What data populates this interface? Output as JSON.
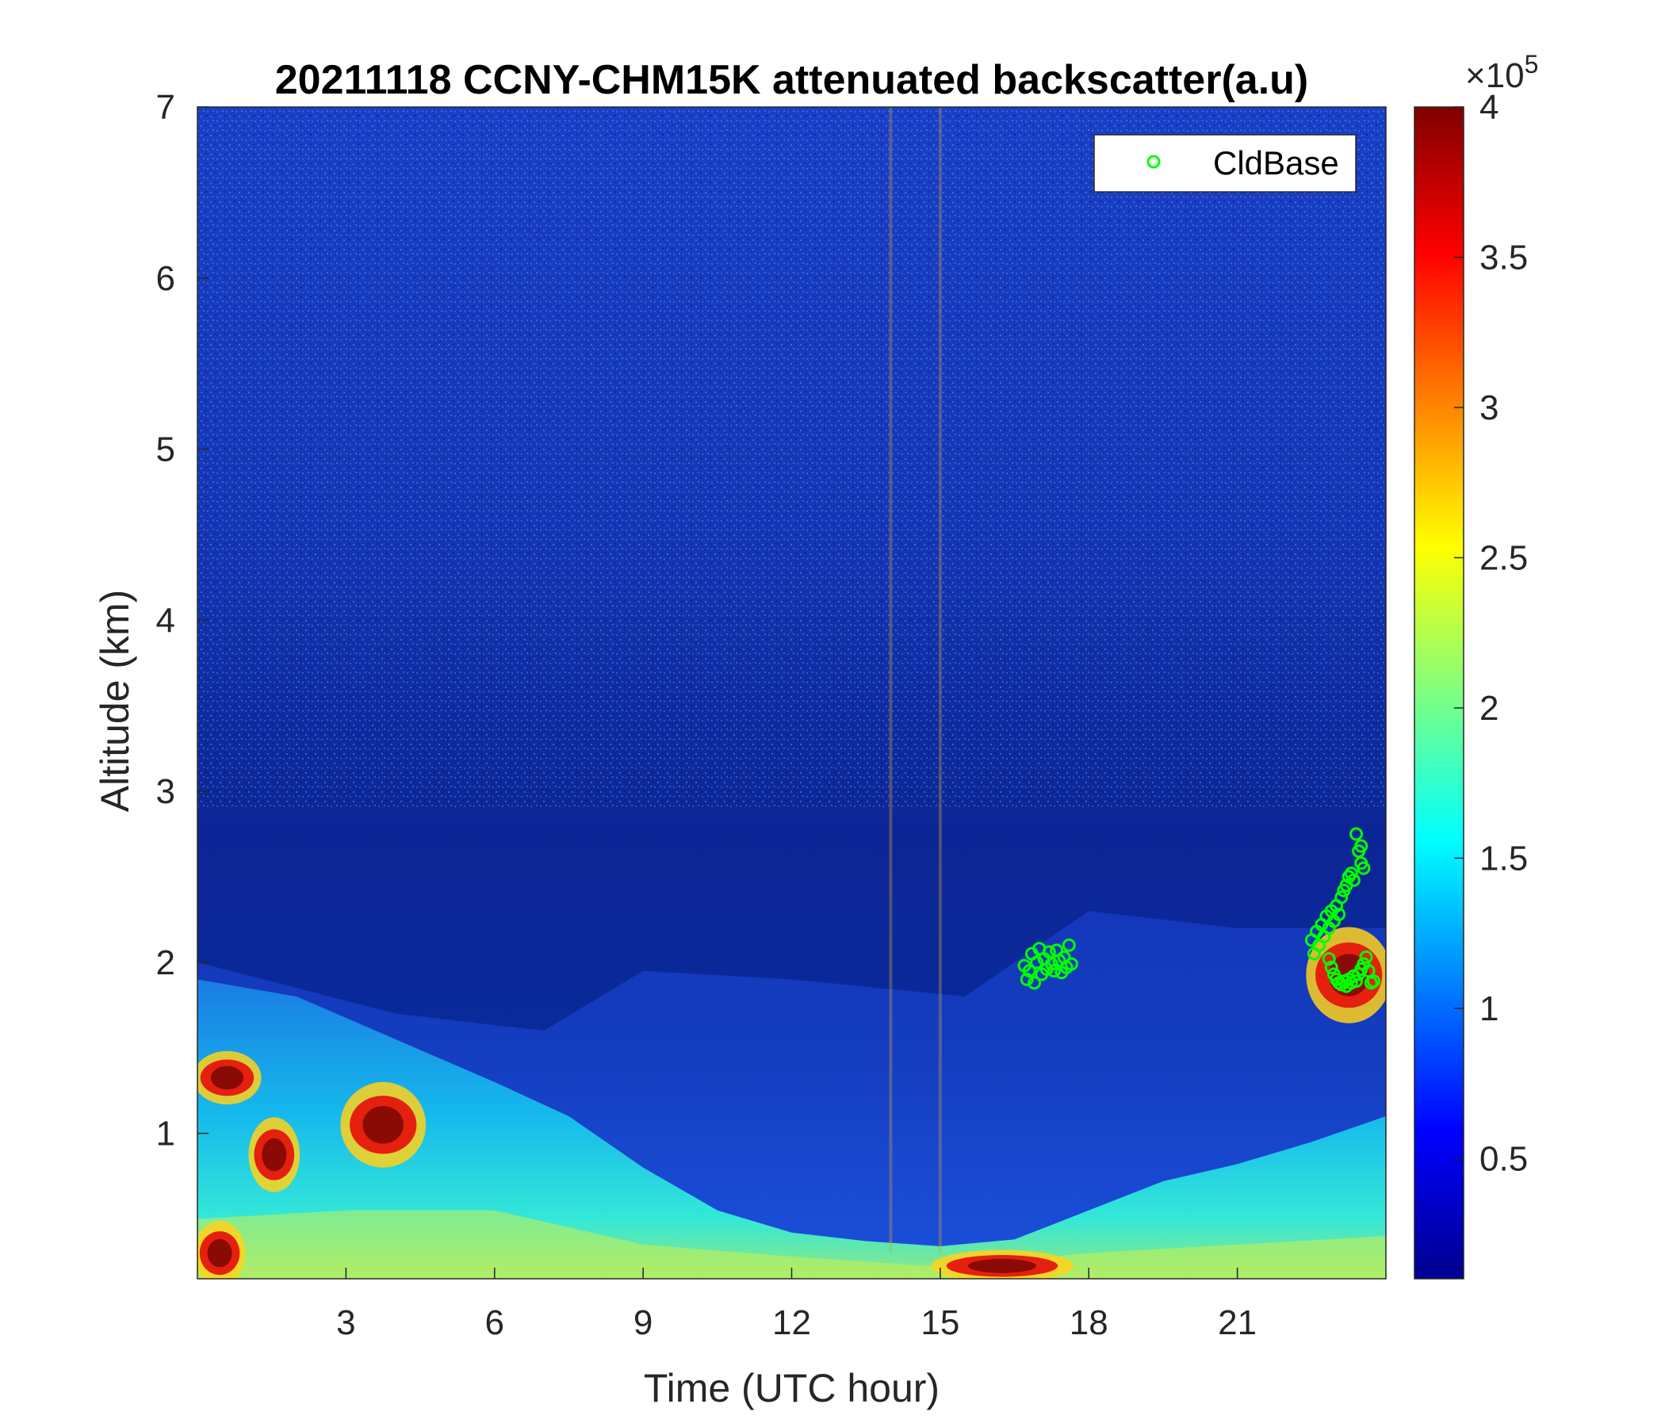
{
  "chart_data": {
    "type": "heatmap",
    "title": "20211118 CCNY-CHM15K attenuated backscatter(a.u)",
    "xlabel": "Time (UTC hour)",
    "ylabel": "Altitude (km)",
    "xlim": [
      0,
      24
    ],
    "ylim": [
      0.15,
      7
    ],
    "xticks": [
      3,
      6,
      9,
      12,
      15,
      18,
      21
    ],
    "yticks": [
      1,
      2,
      3,
      4,
      5,
      6,
      7
    ],
    "colormap": "jet",
    "colorbar": {
      "range": [
        0.1,
        4
      ],
      "ticks": [
        0.5,
        1,
        1.5,
        2,
        2.5,
        3,
        3.5,
        4
      ],
      "exponent_label": "×10",
      "exponent": "5"
    },
    "legend": {
      "position": "top-right",
      "entries": [
        "CldBase"
      ]
    },
    "series": [
      {
        "name": "CldBase",
        "marker": "circle",
        "color": "#00ff00",
        "points": [
          {
            "x": 16.7,
            "y": 1.98
          },
          {
            "x": 16.75,
            "y": 1.9
          },
          {
            "x": 16.8,
            "y": 1.95
          },
          {
            "x": 16.85,
            "y": 2.05
          },
          {
            "x": 16.9,
            "y": 1.88
          },
          {
            "x": 16.95,
            "y": 2.0
          },
          {
            "x": 17.0,
            "y": 2.08
          },
          {
            "x": 17.05,
            "y": 1.93
          },
          {
            "x": 17.1,
            "y": 2.02
          },
          {
            "x": 17.15,
            "y": 1.96
          },
          {
            "x": 17.2,
            "y": 2.06
          },
          {
            "x": 17.25,
            "y": 1.99
          },
          {
            "x": 17.3,
            "y": 1.95
          },
          {
            "x": 17.35,
            "y": 2.07
          },
          {
            "x": 17.4,
            "y": 2.01
          },
          {
            "x": 17.45,
            "y": 1.94
          },
          {
            "x": 17.5,
            "y": 2.03
          },
          {
            "x": 17.55,
            "y": 1.97
          },
          {
            "x": 17.6,
            "y": 2.1
          },
          {
            "x": 17.65,
            "y": 1.99
          },
          {
            "x": 22.5,
            "y": 2.13
          },
          {
            "x": 22.55,
            "y": 2.05
          },
          {
            "x": 22.6,
            "y": 2.18
          },
          {
            "x": 22.65,
            "y": 2.1
          },
          {
            "x": 22.7,
            "y": 2.22
          },
          {
            "x": 22.75,
            "y": 2.15
          },
          {
            "x": 22.8,
            "y": 2.27
          },
          {
            "x": 22.85,
            "y": 2.2
          },
          {
            "x": 22.9,
            "y": 2.3
          },
          {
            "x": 22.95,
            "y": 2.24
          },
          {
            "x": 23.0,
            "y": 2.33
          },
          {
            "x": 23.05,
            "y": 2.28
          },
          {
            "x": 23.1,
            "y": 2.38
          },
          {
            "x": 23.15,
            "y": 2.42
          },
          {
            "x": 23.2,
            "y": 2.45
          },
          {
            "x": 23.25,
            "y": 2.5
          },
          {
            "x": 23.3,
            "y": 2.52
          },
          {
            "x": 23.35,
            "y": 2.48
          },
          {
            "x": 23.4,
            "y": 2.75
          },
          {
            "x": 23.45,
            "y": 2.65
          },
          {
            "x": 23.5,
            "y": 2.58
          },
          {
            "x": 23.5,
            "y": 2.68
          },
          {
            "x": 23.55,
            "y": 2.55
          },
          {
            "x": 22.85,
            "y": 2.02
          },
          {
            "x": 22.9,
            "y": 1.97
          },
          {
            "x": 22.95,
            "y": 1.93
          },
          {
            "x": 23.0,
            "y": 1.9
          },
          {
            "x": 23.05,
            "y": 1.88
          },
          {
            "x": 23.1,
            "y": 1.87
          },
          {
            "x": 23.15,
            "y": 1.89
          },
          {
            "x": 23.2,
            "y": 1.86
          },
          {
            "x": 23.25,
            "y": 1.9
          },
          {
            "x": 23.3,
            "y": 1.88
          },
          {
            "x": 23.35,
            "y": 1.92
          },
          {
            "x": 23.4,
            "y": 1.89
          },
          {
            "x": 23.45,
            "y": 1.93
          },
          {
            "x": 23.5,
            "y": 1.96
          },
          {
            "x": 23.55,
            "y": 1.99
          },
          {
            "x": 23.6,
            "y": 2.03
          },
          {
            "x": 23.65,
            "y": 1.95
          },
          {
            "x": 23.7,
            "y": 1.88
          },
          {
            "x": 23.75,
            "y": 1.89
          }
        ]
      }
    ],
    "features": [
      {
        "label": "boundary layer aerosol top",
        "values_km": {
          "0": 1.9,
          "2": 1.8,
          "4": 1.55,
          "6": 1.3,
          "7.5": 1.1,
          "9": 0.8,
          "10.5": 0.55,
          "12": 0.42,
          "13.5": 0.37,
          "15": 0.34,
          "16.5": 0.38,
          "18": 0.55,
          "19.5": 0.72,
          "21": 0.82,
          "22.5": 0.95,
          "24": 1.1
        }
      },
      {
        "label": "high signal patches",
        "regions": [
          {
            "x": [
              1.1,
              2.0
            ],
            "y": [
              0.7,
              1.05
            ]
          },
          {
            "x": [
              3.0,
              4.5
            ],
            "y": [
              0.85,
              1.25
            ]
          },
          {
            "x": [
              0.0,
              0.9
            ],
            "y": [
              0.15,
              0.45
            ]
          },
          {
            "x": [
              0.0,
              1.2
            ],
            "y": [
              1.2,
              1.45
            ]
          },
          {
            "x": [
              15.0,
              17.5
            ],
            "y": [
              0.15,
              0.3
            ]
          },
          {
            "x": [
              22.5,
              24
            ],
            "y": [
              1.7,
              2.15
            ]
          }
        ]
      }
    ]
  }
}
